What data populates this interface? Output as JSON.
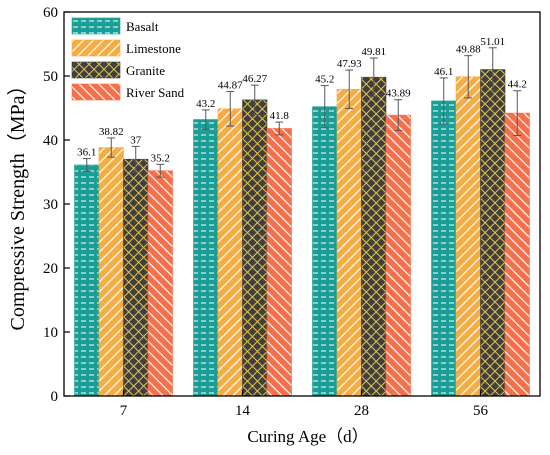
{
  "chart_data": {
    "type": "bar",
    "xlabel": "Curing Age（d）",
    "ylabel": "Compressive Strength（MPa）",
    "ylim": [
      0,
      60
    ],
    "yticks": [
      0,
      10,
      20,
      30,
      40,
      50,
      60
    ],
    "categories": [
      "7",
      "14",
      "28",
      "56"
    ],
    "legend_position": "top-left",
    "series": [
      {
        "name": "Basalt",
        "values": [
          36.1,
          43.2,
          45.2,
          46.1
        ],
        "labels": [
          "36.1",
          "43.2",
          "45.2",
          "46.1"
        ],
        "errors": [
          1.0,
          1.5,
          3.3,
          3.6
        ],
        "color": "#1a9e96",
        "pattern": "dash"
      },
      {
        "name": "Limestone",
        "values": [
          38.82,
          44.87,
          47.93,
          49.88
        ],
        "labels": [
          "38.82",
          "44.87",
          "47.93",
          "49.88"
        ],
        "errors": [
          1.5,
          2.7,
          3.0,
          3.3
        ],
        "color": "#f5ad43",
        "pattern": "backslash"
      },
      {
        "name": "Granite",
        "values": [
          37,
          46.27,
          49.81,
          51.01
        ],
        "labels": [
          "37",
          "46.27",
          "49.81",
          "51.01"
        ],
        "errors": [
          2.0,
          2.3,
          3.0,
          3.4
        ],
        "color": "#3f3f3f",
        "pattern": "cross"
      },
      {
        "name": "River Sand",
        "values": [
          35.2,
          41.8,
          43.89,
          44.2
        ],
        "labels": [
          "35.2",
          "41.8",
          "43.89",
          "44.2"
        ],
        "errors": [
          1.0,
          1.0,
          2.4,
          3.5
        ],
        "color": "#f56f4a",
        "pattern": "slash"
      }
    ]
  }
}
